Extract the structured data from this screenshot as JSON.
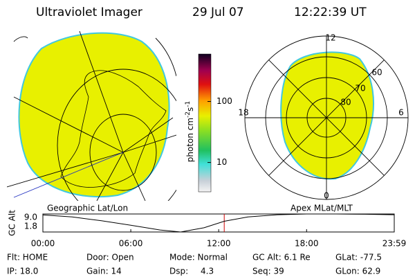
{
  "header": {
    "instrument": "Ultraviolet Imager",
    "date": "29 Jul 07",
    "time": "12:22:39 UT"
  },
  "colorbar": {
    "label_parts": [
      "photon cm",
      "-2",
      "s",
      "-1"
    ],
    "log_scale": true,
    "lim": [
      3.3,
      600
    ],
    "ticks": [
      10,
      100
    ]
  },
  "geographic_panel": {
    "label": "Geographic Lat/Lon"
  },
  "magnetic_panel": {
    "label": "Apex MLat/MLT",
    "mlt_labels": [
      "12",
      "18",
      "6",
      "0"
    ],
    "mlat_labels": [
      "60",
      "70",
      "80"
    ]
  },
  "altitude_chart": {
    "type": "line",
    "ylabel": "GC Alt",
    "ylim": [
      1.8,
      9.0
    ],
    "yticks": [
      {
        "value": 9.0,
        "label": "9.0"
      },
      {
        "value": 1.8,
        "label": "1.8"
      }
    ],
    "xlim": [
      0,
      23.983
    ],
    "xticks": [
      {
        "value": 0,
        "label": "00:00"
      },
      {
        "value": 6,
        "label": "06:00"
      },
      {
        "value": 12,
        "label": "12:00"
      },
      {
        "value": 18,
        "label": "18:00"
      },
      {
        "value": 23.983,
        "label": "23:59"
      }
    ],
    "x": [
      0,
      2,
      4,
      6,
      8,
      9.4,
      11,
      12.38,
      14,
      16,
      18,
      20,
      22,
      23.983
    ],
    "values": [
      8.6,
      7.8,
      6.3,
      4.5,
      2.6,
      1.8,
      3.5,
      6.1,
      7.8,
      8.7,
      9.0,
      9.0,
      8.9,
      8.7
    ],
    "color": "#000000",
    "marker_x": 12.378,
    "marker_color": "#cc0000"
  },
  "status": {
    "rows": [
      [
        "Flt: HOME",
        "Door: Open",
        "Mode: Normal",
        "GC Alt: 6.1 Re",
        "GLat: -77.5"
      ],
      [
        "IP: 18.0",
        "Gain: 14",
        "Dsp:",
        "4.3",
        "Seq: 39",
        "GLon: 62.9"
      ]
    ]
  }
}
